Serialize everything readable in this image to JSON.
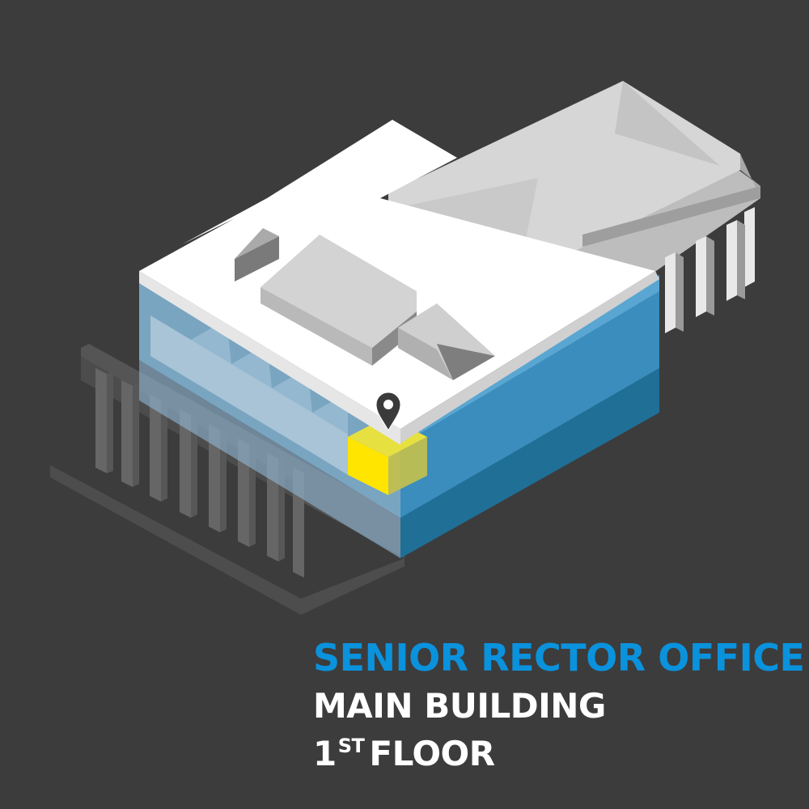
{
  "caption": {
    "title": "SENIOR RECTOR OFFICE",
    "building": "MAIN BUILDING",
    "floor_number": "1",
    "floor_suffix": "ST",
    "floor_word": "FLOOR"
  },
  "colors": {
    "background": "#3c3c3c",
    "highlight": "#ffe500",
    "glass": "#2a7fb0",
    "title": "#0a92dd",
    "roof": "#ffffff",
    "pin": "#3a3a3a"
  },
  "icons": {
    "pin": "location-pin-icon"
  }
}
